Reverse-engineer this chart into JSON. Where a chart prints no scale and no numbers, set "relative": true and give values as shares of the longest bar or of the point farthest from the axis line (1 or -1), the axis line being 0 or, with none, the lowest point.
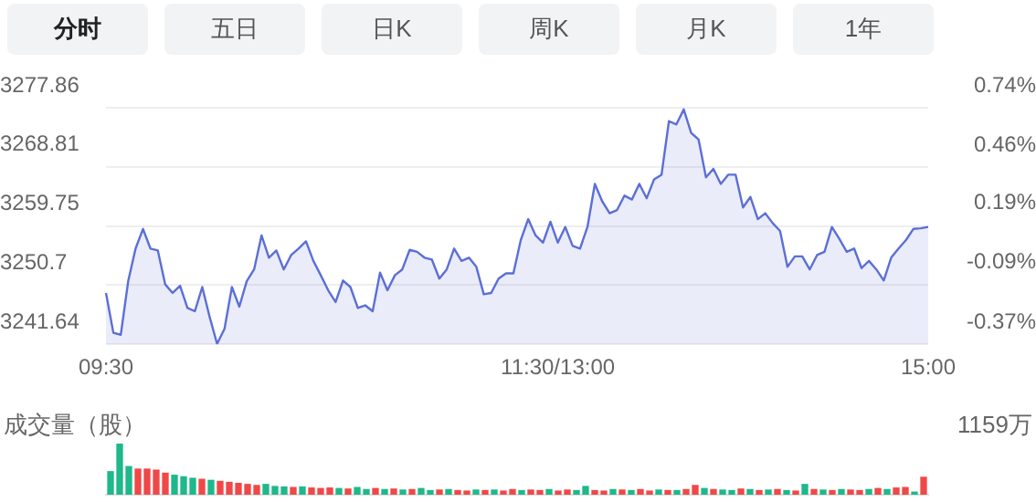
{
  "chart_data": [
    {
      "type": "area",
      "annotations": [
        "分时",
        "五日",
        "日K",
        "周K",
        "月K",
        "1年"
      ],
      "categories": [
        "09:30",
        null,
        null,
        null,
        null,
        null,
        null,
        null,
        null,
        null,
        null,
        null,
        null,
        null,
        null,
        null,
        null,
        null,
        null,
        null,
        null,
        null,
        null,
        null,
        null,
        null,
        null,
        null,
        null,
        null,
        null,
        null,
        null,
        null,
        null,
        null,
        null,
        null,
        null,
        null,
        null,
        null,
        null,
        null,
        null,
        null,
        null,
        null,
        null,
        null,
        null,
        null,
        null,
        null,
        null,
        null,
        null,
        null,
        null,
        null,
        null,
        "11:30/13:00",
        null,
        null,
        null,
        null,
        null,
        null,
        null,
        null,
        null,
        null,
        null,
        null,
        null,
        null,
        null,
        null,
        null,
        null,
        null,
        null,
        null,
        null,
        null,
        null,
        null,
        null,
        null,
        null,
        null,
        null,
        null,
        null,
        null,
        null,
        null,
        null,
        null,
        null,
        null,
        null,
        null,
        null,
        null,
        null,
        null,
        null,
        null,
        null,
        null,
        "15:00"
      ],
      "ylim": [
        3241.64,
        3277.86
      ],
      "yticks": [
        3241.64,
        3250.7,
        3259.75,
        3268.81,
        3277.86
      ],
      "y2lim": [
        -0.37,
        0.74
      ],
      "y2ticks": [
        {
          "value": -0.37,
          "label": "-0.37%"
        },
        {
          "value": -0.09,
          "label": "-0.09%"
        },
        {
          "value": 0.19,
          "label": "0.19%"
        },
        {
          "value": 0.46,
          "label": "0.46%"
        },
        {
          "value": 0.74,
          "label": "0.74%"
        }
      ],
      "grid": "y",
      "marker": "none",
      "line_style": "solid",
      "series": [
        {
          "color": "#5b6fd6",
          "values": [
            3249.5,
            3243.4,
            3243.1,
            3251.3,
            3256.3,
            3259.3,
            3256.3,
            3256.0,
            3250.8,
            3249.5,
            3250.6,
            3247.2,
            3246.7,
            3250.4,
            3245.8,
            3241.7,
            3244.0,
            3250.4,
            3247.4,
            3251.3,
            3253.1,
            3258.3,
            3254.9,
            3256.0,
            3253.1,
            3255.3,
            3256.3,
            3257.4,
            3254.4,
            3252.2,
            3249.9,
            3248.1,
            3251.4,
            3250.4,
            3247.2,
            3247.6,
            3246.7,
            3252.6,
            3249.9,
            3252.2,
            3253.1,
            3256.1,
            3255.8,
            3254.9,
            3254.6,
            3251.7,
            3253.1,
            3256.3,
            3254.4,
            3254.9,
            3253.5,
            3249.3,
            3249.5,
            3251.7,
            3252.5,
            3252.5,
            3257.6,
            3260.8,
            3258.3,
            3257.2,
            3260.4,
            3257.2,
            3259.6,
            3256.7,
            3256.3,
            3259.6,
            3266.2,
            3263.5,
            3261.7,
            3262.2,
            3264.4,
            3263.8,
            3266.2,
            3264.0,
            3266.9,
            3267.6,
            3275.8,
            3275.3,
            3277.6,
            3274.0,
            3273.0,
            3267.2,
            3268.5,
            3266.2,
            3267.6,
            3267.6,
            3262.6,
            3264.2,
            3260.8,
            3261.7,
            3260.2,
            3259.0,
            3253.5,
            3255.1,
            3255.1,
            3253.1,
            3255.3,
            3255.8,
            3259.6,
            3257.8,
            3255.8,
            3256.3,
            3253.3,
            3254.4,
            3253.1,
            3251.4,
            3254.9,
            3256.3,
            3257.6,
            3259.3,
            3259.4,
            3259.6
          ]
        }
      ]
    },
    {
      "type": "bar",
      "relative": true,
      "title": "成交量（股）",
      "annotations": [
        "1159万"
      ],
      "categories": [
        null,
        null,
        null,
        null,
        null,
        null,
        null,
        null,
        null,
        null,
        null,
        null,
        null,
        null,
        null,
        null,
        null,
        null,
        null,
        null,
        null,
        null,
        null,
        null,
        null,
        null,
        null,
        null,
        null,
        null,
        null,
        null,
        null,
        null,
        null,
        null,
        null,
        null,
        null,
        null,
        null,
        null,
        null,
        null,
        null,
        null,
        null,
        null,
        null,
        null,
        null,
        null,
        null,
        null,
        null,
        null,
        null,
        null,
        null,
        null,
        null,
        null,
        null,
        null,
        null,
        null,
        null,
        null,
        null,
        null,
        null,
        null,
        null,
        null,
        null,
        null,
        null,
        null,
        null,
        null,
        null,
        null,
        null,
        null,
        null,
        null,
        null,
        null,
        null,
        null
      ],
      "values": [
        0.45,
        1.0,
        0.55,
        0.5,
        0.5,
        0.48,
        0.42,
        0.38,
        0.35,
        0.32,
        0.3,
        0.28,
        0.26,
        0.24,
        0.22,
        0.2,
        0.18,
        0.2,
        0.16,
        0.15,
        0.14,
        0.15,
        0.13,
        0.12,
        0.13,
        0.12,
        0.11,
        0.14,
        0.1,
        0.12,
        0.1,
        0.11,
        0.09,
        0.1,
        0.12,
        0.08,
        0.09,
        0.1,
        0.08,
        0.07,
        0.09,
        0.08,
        0.09,
        0.07,
        0.1,
        0.08,
        0.09,
        0.08,
        0.1,
        0.07,
        0.09,
        0.08,
        0.16,
        0.08,
        0.07,
        0.1,
        0.09,
        0.08,
        0.1,
        0.07,
        0.09,
        0.08,
        0.08,
        0.1,
        0.18,
        0.12,
        0.1,
        0.09,
        0.08,
        0.11,
        0.1,
        0.08,
        0.09,
        0.1,
        0.08,
        0.07,
        0.2,
        0.1,
        0.09,
        0.08,
        0.1,
        0.09,
        0.08,
        0.1,
        0.12,
        0.1,
        0.13,
        0.14,
        0.05,
        0.34
      ],
      "colors": [
        "#1fb88a",
        "#1fb88a",
        "#1fb88a",
        "#f04848",
        "#f04848",
        "#f04848",
        "#f04848",
        "#1fb88a",
        "#1fb88a",
        "#1fb88a",
        "#f04848",
        "#1fb88a",
        "#f04848",
        "#f04848",
        "#f04848",
        "#f04848",
        "#f04848",
        "#1fb88a",
        "#1fb88a",
        "#1fb88a",
        "#f04848",
        "#1fb88a",
        "#f04848",
        "#f04848",
        "#f04848",
        "#1fb88a",
        "#f04848",
        "#1fb88a",
        "#1fb88a",
        "#f04848",
        "#1fb88a",
        "#f04848",
        "#1fb88a",
        "#f04848",
        "#1fb88a",
        "#1fb88a",
        "#f04848",
        "#1fb88a",
        "#f04848",
        "#f04848",
        "#1fb88a",
        "#f04848",
        "#1fb88a",
        "#f04848",
        "#f04848",
        "#1fb88a",
        "#f04848",
        "#f04848",
        "#1fb88a",
        "#f04848",
        "#f04848",
        "#1fb88a",
        "#1fb88a",
        "#f04848",
        "#f04848",
        "#1fb88a",
        "#f04848",
        "#1fb88a",
        "#f04848",
        "#f04848",
        "#1fb88a",
        "#f04848",
        "#1fb88a",
        "#f04848",
        "#f04848",
        "#1fb88a",
        "#f04848",
        "#1fb88a",
        "#1fb88a",
        "#f04848",
        "#1fb88a",
        "#f04848",
        "#1fb88a",
        "#f04848",
        "#1fb88a",
        "#f04848",
        "#1fb88a",
        "#f04848",
        "#1fb88a",
        "#f04848",
        "#1fb88a",
        "#f04848",
        "#f04848",
        "#1fb88a",
        "#f04848",
        "#1fb88a",
        "#f04848",
        "#f04848",
        "#1fb88a",
        "#f04848"
      ]
    }
  ]
}
